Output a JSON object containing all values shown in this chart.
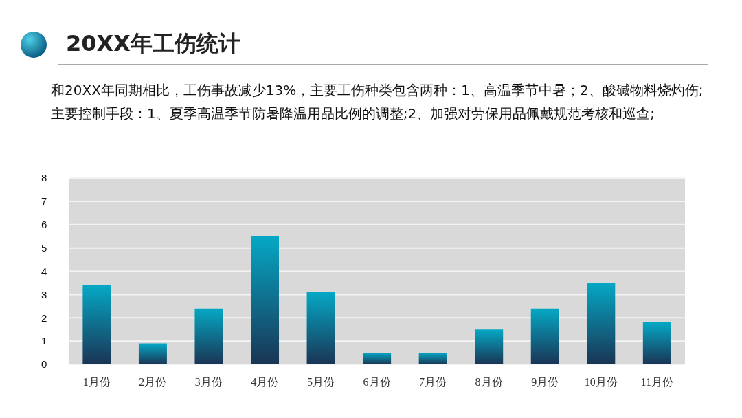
{
  "chart_data": {
    "type": "bar",
    "title": "20XX年工伤统计",
    "subtitle": "和20XX年同期相比，工伤事故减少13%，主要工伤种类包含两种：1、高温季节中暑；2、酸碱物料烧灼伤;主要控制手段：1、夏季高温季节防暑降温用品比例的调整;2、加强对劳保用品佩戴规范考核和巡查;",
    "categories": [
      "1月份",
      "2月份",
      "3月份",
      "4月份",
      "5月份",
      "6月份",
      "7月份",
      "8月份",
      "9月份",
      "10月份",
      "11月份"
    ],
    "values": [
      3.4,
      0.9,
      2.4,
      5.5,
      3.1,
      0.5,
      0.5,
      1.5,
      2.4,
      3.5,
      1.8
    ],
    "color": "#05a8c5",
    "ylim": [
      0,
      8
    ],
    "yticks": [
      0,
      1,
      2,
      3,
      4,
      5,
      6,
      7,
      8
    ],
    "grid": "y"
  }
}
